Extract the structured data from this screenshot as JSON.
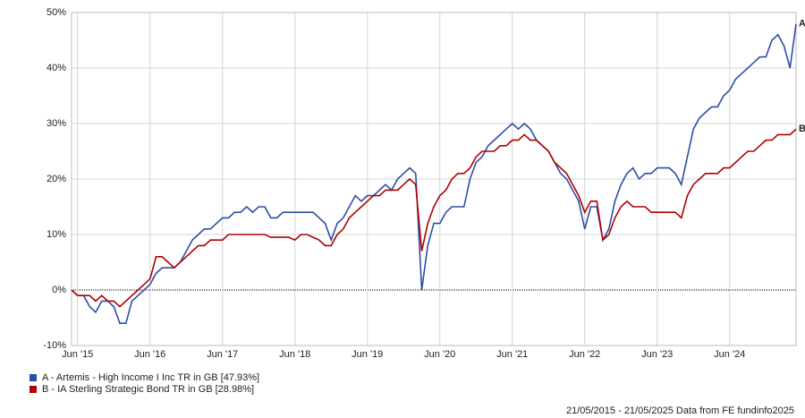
{
  "chart_data": {
    "type": "line",
    "categories": [
      null,
      "Jun '15",
      null,
      null,
      null,
      null,
      null,
      null,
      null,
      null,
      null,
      null,
      null,
      "Jun '16",
      null,
      null,
      null,
      null,
      null,
      null,
      null,
      null,
      null,
      null,
      null,
      "Jun '17",
      null,
      null,
      null,
      null,
      null,
      null,
      null,
      null,
      null,
      null,
      null,
      "Jun '18",
      null,
      null,
      null,
      null,
      null,
      null,
      null,
      null,
      null,
      null,
      null,
      "Jun '19",
      null,
      null,
      null,
      null,
      null,
      null,
      null,
      null,
      null,
      null,
      null,
      "Jun '20",
      null,
      null,
      null,
      null,
      null,
      null,
      null,
      null,
      null,
      null,
      null,
      "Jun '21",
      null,
      null,
      null,
      null,
      null,
      null,
      null,
      null,
      null,
      null,
      null,
      "Jun '22",
      null,
      null,
      null,
      null,
      null,
      null,
      null,
      null,
      null,
      null,
      null,
      "Jun '23",
      null,
      null,
      null,
      null,
      null,
      null,
      null,
      null,
      null,
      null,
      null,
      "Jun '24",
      null,
      null,
      null,
      null,
      null,
      null,
      null,
      null,
      null,
      null,
      null
    ],
    "series": [
      {
        "name": "A - Artemis - High Income I Inc TR in GB [47.93%]",
        "marker": "A",
        "color": "#2b4ea6",
        "values": [
          0,
          -1,
          -1,
          -3,
          -4,
          -2,
          -2,
          -3,
          -6,
          -6,
          -2,
          -1,
          0,
          1,
          3,
          4,
          4,
          4,
          5,
          7,
          9,
          10,
          11,
          11,
          12,
          13,
          13,
          14,
          14,
          15,
          14,
          15,
          15,
          13,
          13,
          14,
          14,
          14,
          14,
          14,
          14,
          13,
          12,
          9,
          12,
          13,
          15,
          17,
          16,
          17,
          17,
          18,
          19,
          18,
          20,
          21,
          22,
          21,
          0,
          8,
          12,
          12,
          14,
          15,
          15,
          15,
          20,
          23,
          24,
          26,
          27,
          28,
          29,
          30,
          29,
          30,
          29,
          27,
          26,
          25,
          23,
          21,
          20,
          18,
          16,
          11,
          15,
          15,
          9,
          11,
          16,
          19,
          21,
          22,
          20,
          21,
          21,
          22,
          22,
          22,
          21,
          19,
          24,
          29,
          31,
          32,
          33,
          33,
          35,
          36,
          38,
          39,
          40,
          41,
          42,
          42,
          45,
          46,
          44,
          40,
          47.93
        ]
      },
      {
        "name": "B - IA Sterling Strategic Bond TR in GB [28.98%]",
        "marker": "B",
        "color": "#b00000",
        "values": [
          0,
          -1,
          -1,
          -1,
          -2,
          -1,
          -2,
          -2,
          -3,
          -2,
          -1,
          0,
          1,
          2,
          6,
          6,
          5,
          4,
          5,
          6,
          7,
          8,
          8,
          9,
          9,
          9,
          10,
          10,
          10,
          10,
          10,
          10,
          10,
          9.5,
          9.5,
          9.5,
          9.5,
          9,
          10,
          10,
          9.5,
          9,
          8,
          8,
          10,
          11,
          13,
          14,
          15,
          16,
          17,
          17,
          18,
          18,
          18,
          19,
          20,
          19,
          7,
          12,
          15,
          17,
          18,
          20,
          21,
          21,
          22,
          24,
          25,
          25,
          25,
          26,
          26,
          27,
          27,
          28,
          27,
          27,
          26,
          25,
          23,
          22,
          21,
          19,
          17,
          14,
          16,
          16,
          9,
          10,
          13,
          15,
          16,
          15,
          15,
          15,
          14,
          14,
          14,
          14,
          14,
          13,
          17,
          19,
          20,
          21,
          21,
          21,
          22,
          22,
          23,
          24,
          25,
          25,
          26,
          27,
          27,
          28,
          28,
          28,
          28.98
        ]
      }
    ],
    "ylim": [
      -10,
      50
    ],
    "yticks": [
      {
        "value": -10,
        "label": "-10%"
      },
      {
        "value": 0,
        "label": "0%"
      },
      {
        "value": 10,
        "label": "10%"
      },
      {
        "value": 20,
        "label": "20%"
      },
      {
        "value": 30,
        "label": "30%"
      },
      {
        "value": 40,
        "label": "40%"
      },
      {
        "value": 50,
        "label": "50%"
      }
    ],
    "grid": true,
    "source": "21/05/2015 - 21/05/2025 Data from FE fundinfo2025"
  }
}
